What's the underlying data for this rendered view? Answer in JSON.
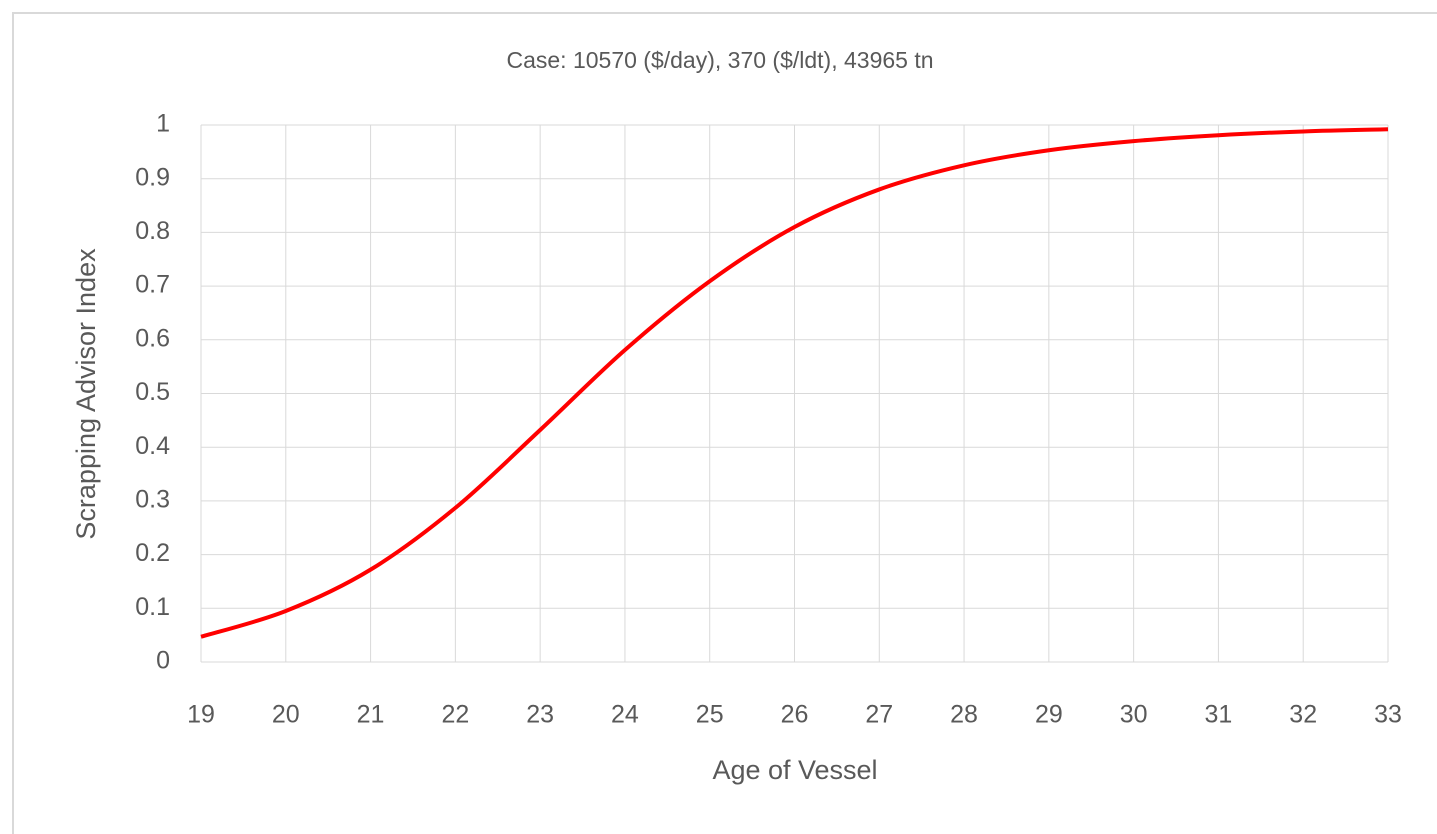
{
  "chart_data": {
    "type": "line",
    "title": "Case: 10570 ($/day), 370 ($/ldt), 43965 tn",
    "x_label": "Age of Vessel",
    "y_label": "Scrapping Advisor Index",
    "x": [
      19,
      20,
      21,
      22,
      23,
      24,
      25,
      26,
      27,
      28,
      29,
      30,
      31,
      32,
      33
    ],
    "series": [
      {
        "name": "Scrapping Advisor Index",
        "color": "#ff0000",
        "values": [
          0.047,
          0.095,
          0.172,
          0.287,
          0.432,
          0.581,
          0.709,
          0.81,
          0.88,
          0.925,
          0.953,
          0.97,
          0.981,
          0.988,
          0.992
        ]
      }
    ],
    "xlim": [
      19,
      33
    ],
    "xticks": [
      19,
      20,
      21,
      22,
      23,
      24,
      25,
      26,
      27,
      28,
      29,
      30,
      31,
      32,
      33
    ],
    "ylim": [
      0,
      1
    ],
    "yticks": [
      0,
      0.1,
      0.2,
      0.3,
      0.4,
      0.5,
      0.6,
      0.7,
      0.8,
      0.9,
      1
    ],
    "grid": true
  }
}
